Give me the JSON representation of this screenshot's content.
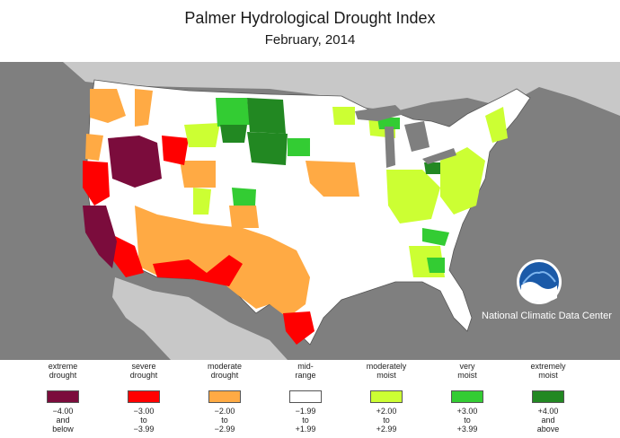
{
  "title": "Palmer Hydrological Drought Index",
  "subtitle": "February, 2014",
  "credit": "National Climatic Data Center",
  "logo": {
    "icon": "noaa-logo-icon",
    "text": "NOAA"
  },
  "colors": {
    "background_map": "#7f7f7f",
    "land": "#ffffff",
    "neighbor_land": "#c8c8c8",
    "extreme_drought": "#7b0c3c",
    "severe_drought": "#ff0000",
    "moderate_drought": "#ffaa44",
    "mid_range": "#ffffff",
    "moderately_moist": "#ccff33",
    "very_moist": "#33cc33",
    "extremely_moist": "#228822"
  },
  "legend": [
    {
      "label_lines": [
        "extreme",
        "drought"
      ],
      "range_lines": [
        "−4.00",
        "and",
        "below"
      ],
      "color": "#7b0c3c"
    },
    {
      "label_lines": [
        "severe",
        "drought"
      ],
      "range_lines": [
        "−3.00",
        "to",
        "−3.99"
      ],
      "color": "#ff0000"
    },
    {
      "label_lines": [
        "moderate",
        "drought"
      ],
      "range_lines": [
        "−2.00",
        "to",
        "−2.99"
      ],
      "color": "#ffaa44"
    },
    {
      "label_lines": [
        "mid-",
        "range"
      ],
      "range_lines": [
        "−1.99",
        "to",
        "+1.99"
      ],
      "color": "#ffffff"
    },
    {
      "label_lines": [
        "moderately",
        "moist"
      ],
      "range_lines": [
        "+2.00",
        "to",
        "+2.99"
      ],
      "color": "#ccff33"
    },
    {
      "label_lines": [
        "very",
        "moist"
      ],
      "range_lines": [
        "+3.00",
        "to",
        "+3.99"
      ],
      "color": "#33cc33"
    },
    {
      "label_lines": [
        "extremely",
        "moist"
      ],
      "range_lines": [
        "+4.00",
        "and",
        "above"
      ],
      "color": "#228822"
    }
  ]
}
